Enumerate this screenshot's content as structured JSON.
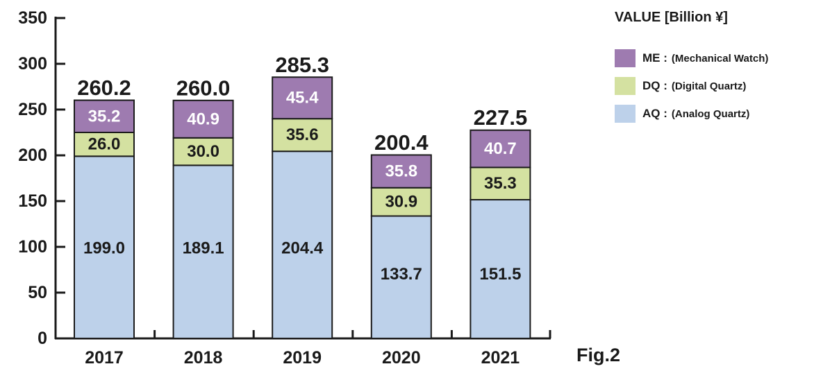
{
  "chart_data": {
    "type": "bar",
    "stacked": true,
    "categories": [
      "2017",
      "2018",
      "2019",
      "2020",
      "2021"
    ],
    "series": [
      {
        "name": "AQ",
        "label": "AQ : (Analog Quartz)",
        "color": "#bdd1ea",
        "text_color": "#1a1a1a",
        "values": [
          199.0,
          189.1,
          204.4,
          133.7,
          151.5
        ]
      },
      {
        "name": "DQ",
        "label": "DQ : (Digital Quartz)",
        "color": "#d4e1a1",
        "text_color": "#1a1a1a",
        "values": [
          26.0,
          30.0,
          35.6,
          30.9,
          35.3
        ]
      },
      {
        "name": "ME",
        "label": "ME : (Mechanical Watch)",
        "color": "#9e7bb0",
        "text_color": "#ffffff",
        "values": [
          35.2,
          40.9,
          45.4,
          35.8,
          40.7
        ]
      }
    ],
    "totals": [
      "260.2",
      "260.0",
      "285.3",
      "200.4",
      "227.5"
    ],
    "value_labels": [
      [
        "199.0",
        "189.1",
        "204.4",
        "133.7",
        "151.5"
      ],
      [
        "26.0",
        "30.0",
        "35.6",
        "30.9",
        "35.3"
      ],
      [
        "35.2",
        "40.9",
        "45.4",
        "35.8",
        "40.7"
      ]
    ],
    "title": "VALUE [Billion ¥]",
    "xlabel": "",
    "ylabel": "",
    "ylim": [
      0,
      350
    ],
    "yticks": [
      "0",
      "50",
      "100",
      "150",
      "200",
      "250",
      "300",
      "350"
    ],
    "grid": false,
    "legend_position": "right"
  },
  "legend": {
    "items": [
      {
        "abbr": "ME :",
        "desc": "(Mechanical Watch)",
        "color": "#9e7bb0"
      },
      {
        "abbr": "DQ :",
        "desc": "(Digital Quartz)",
        "color": "#d4e1a1"
      },
      {
        "abbr": "AQ :",
        "desc": "(Analog Quartz)",
        "color": "#bdd1ea"
      }
    ]
  },
  "figure_label": "Fig.2"
}
